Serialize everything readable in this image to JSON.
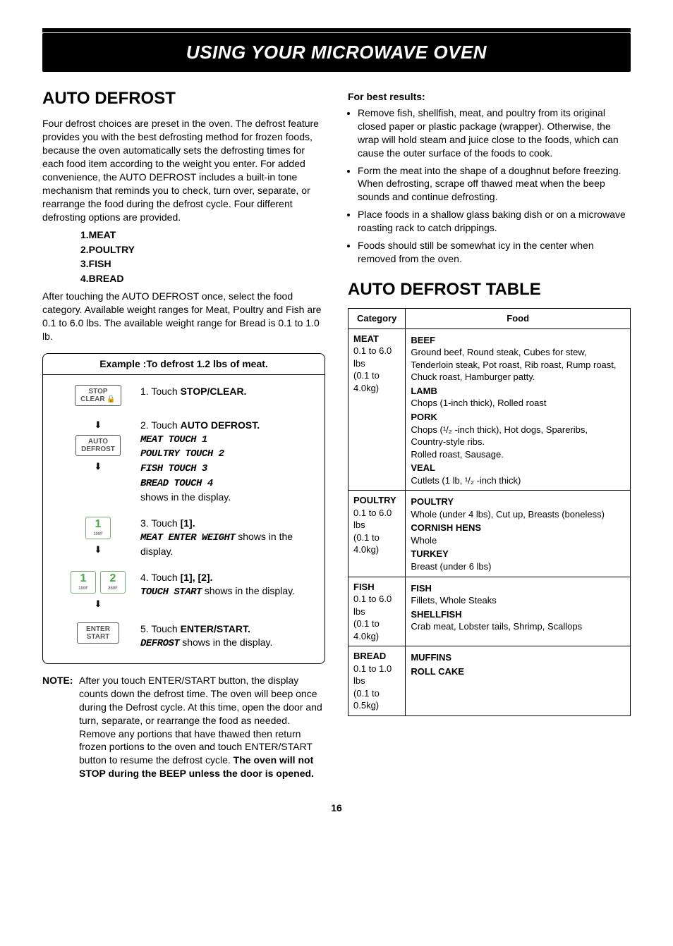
{
  "banner": "USING YOUR MICROWAVE OVEN",
  "left": {
    "heading": "AUTO DEFROST",
    "intro": "Four defrost choices are preset in the oven. The defrost feature provides you with the best defrosting method for frozen foods, because the oven automatically sets the defrosting times for each food item according to the weight you enter. For added convenience, the AUTO DEFROST includes a built-in tone mechanism that reminds you to check, turn over, separate, or rearrange the food during the defrost cycle. Four different defrosting options are provided.",
    "options": [
      "1.MEAT",
      "2.POULTRY",
      "3.FISH",
      "4.BREAD"
    ],
    "after": "After touching the AUTO DEFROST once, select the food category. Available weight ranges for Meat, Poultry and Fish are 0.1 to 6.0 lbs. The available weight range for Bread is 0.1 to 1.0 lb.",
    "example_title": "Example :To defrost 1.2 lbs of meat.",
    "steps": [
      {
        "n": "1.",
        "act": "Touch ",
        "bold": "STOP/CLEAR."
      },
      {
        "n": "2.",
        "act": "Touch ",
        "bold": "AUTO DEFROST.",
        "lcd": [
          "MEAT TOUCH 1",
          "POULTRY TOUCH 2",
          "FISH TOUCH 3",
          "BREAD TOUCH 4"
        ],
        "tail": "shows in the display."
      },
      {
        "n": "3.",
        "act": "Touch ",
        "bold": "[1].",
        "lcd": [
          "MEAT ENTER WEIGHT"
        ],
        "inline_tail": " shows in the display."
      },
      {
        "n": "4.",
        "act": "Touch ",
        "bold": "[1], [2].",
        "lcd": [
          "TOUCH START"
        ],
        "inline_tail": " shows in the display."
      },
      {
        "n": "5.",
        "act": "Touch ",
        "bold": "ENTER/START.",
        "lcd": [
          "DEFROST"
        ],
        "inline_tail": " shows in the display."
      }
    ],
    "btn_stop1": "STOP",
    "btn_stop2": "CLEAR 🔒",
    "btn_auto1": "AUTO",
    "btn_auto2": "DEFROST",
    "digit1": "1",
    "digit1_sub": "100F",
    "digit2": "2",
    "digit2_sub": "250F",
    "btn_enter1": "ENTER",
    "btn_enter2": "START",
    "note_label": "NOTE:",
    "note_body": "After you touch ENTER/START button, the display counts down the defrost time. The oven will beep once during the Defrost cycle. At this time, open the door and turn, separate, or rearrange the food as needed. Remove any portions that have thawed then return frozen portions to the oven and touch ENTER/START button to resume the defrost cycle. ",
    "note_bold": "The oven will not STOP during the BEEP unless the door is opened."
  },
  "right": {
    "fbr": "For best results:",
    "bullets": [
      "Remove fish, shellfish, meat, and poultry from its original closed paper or plastic package (wrapper). Otherwise, the wrap will hold steam and juice close to the foods, which can cause the outer surface of the foods to cook.",
      "Form the meat into the shape of a doughnut before freezing. When defrosting, scrape off thawed meat when the beep sounds and continue defrosting.",
      "Place foods in a shallow glass baking dish or on a microwave roasting rack to catch drippings.",
      "Foods should still be somewhat icy in the center when removed from the oven."
    ],
    "table_heading": "AUTO DEFROST TABLE",
    "th1": "Category",
    "th2": "Food",
    "rows": [
      {
        "cat": "MEAT",
        "range": "0.1 to 6.0 lbs",
        "kg": "(0.1 to 4.0kg)",
        "foods": [
          {
            "h": "BEEF",
            "d": "Ground beef, Round steak, Cubes for stew, Tenderloin steak, Pot roast, Rib roast, Rump roast, Chuck roast, Hamburger patty."
          },
          {
            "h": "LAMB",
            "d": "Chops (1-inch thick), Rolled roast"
          },
          {
            "h": "PORK",
            "d": "Chops (¹/₂ -inch thick), Hot dogs, Spareribs, Country-style ribs.\nRolled roast, Sausage."
          },
          {
            "h": "VEAL",
            "d": "Cutlets (1 lb, ¹/₂ -inch thick)"
          }
        ]
      },
      {
        "cat": "POULTRY",
        "range": "0.1 to 6.0 lbs",
        "kg": "(0.1 to 4.0kg)",
        "foods": [
          {
            "h": "POULTRY",
            "d": "Whole (under 4 lbs), Cut up, Breasts (boneless)"
          },
          {
            "h": "CORNISH HENS",
            "d": "Whole"
          },
          {
            "h": "TURKEY",
            "d": "Breast (under 6 lbs)"
          }
        ]
      },
      {
        "cat": "FISH",
        "range": "0.1 to 6.0 lbs",
        "kg": "(0.1 to 4.0kg)",
        "foods": [
          {
            "h": "FISH",
            "d": "Fillets, Whole Steaks"
          },
          {
            "h": "SHELLFISH",
            "d": "Crab meat, Lobster tails, Shrimp, Scallops"
          }
        ]
      },
      {
        "cat": "BREAD",
        "range": "0.1 to 1.0 lbs",
        "kg": "(0.1 to 0.5kg)",
        "foods": [
          {
            "h": "MUFFINS",
            "d": ""
          },
          {
            "h": "ROLL CAKE",
            "d": ""
          }
        ]
      }
    ]
  },
  "page": "16"
}
